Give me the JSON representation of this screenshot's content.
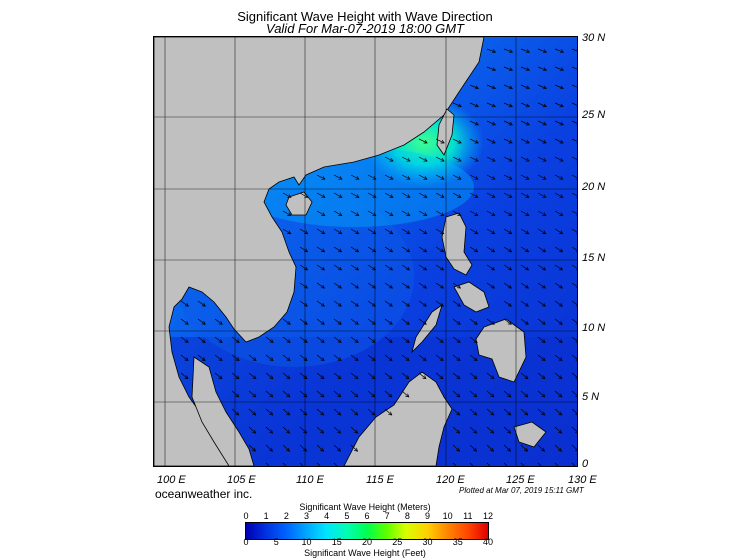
{
  "header": {
    "title": "Significant Wave Height with Wave Direction",
    "subtitle": "Valid For Mar-07-2019 18:00 GMT"
  },
  "map": {
    "lat_labels": [
      "30 N",
      "25 N",
      "20 N",
      "15 N",
      "10 N",
      "5 N",
      "0"
    ],
    "lon_labels": [
      "100 E",
      "105 E",
      "110 E",
      "115 E",
      "120 E",
      "125 E",
      "130 E"
    ],
    "region": "South China Sea",
    "dominant_wave_direction": "from northeast",
    "max_wave_height_m": 5,
    "colors": {
      "land": "#c0c0c0",
      "deep_blue": "#0a2fd8",
      "mid_blue": "#0066ff",
      "cyan": "#00c8ff",
      "green": "#40ff90"
    }
  },
  "footer": {
    "brand": "oceanweather inc.",
    "plotted": "Plotted at Mar 07, 2019 15:11 GMT"
  },
  "colorbar": {
    "meters_title": "Significant Wave Height (Meters)",
    "feet_title": "Significant Wave Height (Feet)",
    "meters_ticks": [
      "0",
      "1",
      "2",
      "3",
      "4",
      "5",
      "6",
      "7",
      "8",
      "9",
      "10",
      "11",
      "12"
    ],
    "feet_ticks": [
      "0",
      "5",
      "10",
      "15",
      "20",
      "25",
      "30",
      "35",
      "40"
    ]
  }
}
